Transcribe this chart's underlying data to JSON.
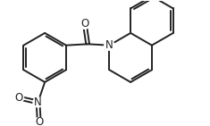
{
  "bg_color": "#ffffff",
  "line_color": "#222222",
  "line_width": 1.4,
  "text_color": "#222222",
  "font_size": 8.5,
  "xlim": [
    -4.0,
    4.5
  ],
  "ylim": [
    -2.4,
    2.4
  ]
}
